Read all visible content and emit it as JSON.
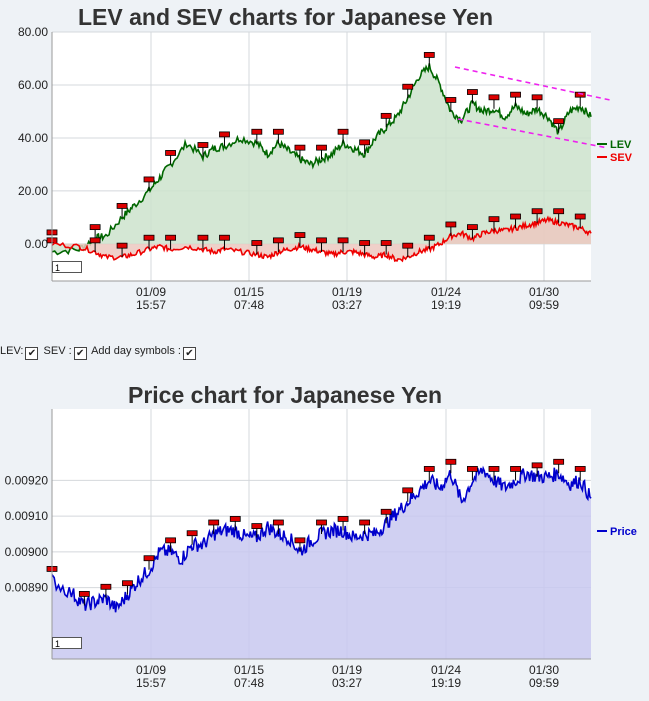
{
  "chart1": {
    "title": "LEV and SEV charts for Japanese Yen",
    "zoom_value": "1"
  },
  "chart2": {
    "title": "Price chart for Japanese Yen",
    "zoom_value": "1"
  },
  "controls": {
    "lev_label": "LEV:",
    "sev_label": "SEV :",
    "day_symbols_label": "Add day symbols :",
    "check_mark": "✔"
  },
  "chart_data": [
    {
      "type": "area",
      "title": "LEV and SEV charts for Japanese Yen",
      "ylim": [
        -14,
        80
      ],
      "y_ticks": [
        "80.00",
        "60.00",
        "40.00",
        "20.00",
        "0.00"
      ],
      "x_tick_labels": [
        [
          "01/09",
          "15:57"
        ],
        [
          "01/15",
          "07:48"
        ],
        [
          "01/19",
          "03:27"
        ],
        [
          "01/24",
          "19:19"
        ],
        [
          "01/30",
          "09:59"
        ]
      ],
      "grid": true,
      "legend_position": "right",
      "trend_lines": {
        "color": "#ee22ee",
        "style": "dashed"
      },
      "series": [
        {
          "name": "LEV",
          "color": "#006600",
          "fill": "#cce3cc",
          "x": [
            0,
            0.05,
            0.08,
            0.1,
            0.13,
            0.15,
            0.18,
            0.2,
            0.22,
            0.25,
            0.28,
            0.3,
            0.32,
            0.35,
            0.38,
            0.4,
            0.42,
            0.44,
            0.46,
            0.48,
            0.5,
            0.52,
            0.54,
            0.56,
            0.58,
            0.6,
            0.62,
            0.64,
            0.66,
            0.68,
            0.7,
            0.72,
            0.74,
            0.76,
            0.78,
            0.8,
            0.82,
            0.84,
            0.86,
            0.88,
            0.9,
            0.92,
            0.94,
            0.96,
            0.98,
            1
          ],
          "values": [
            -3,
            -2,
            2,
            3,
            10,
            14,
            20,
            25,
            30,
            38,
            33,
            36,
            37,
            40,
            38,
            34,
            38,
            35,
            32,
            30,
            32,
            34,
            38,
            36,
            34,
            40,
            44,
            48,
            55,
            63,
            67,
            60,
            50,
            47,
            53,
            50,
            51,
            48,
            52,
            49,
            51,
            48,
            42,
            50,
            52,
            48
          ]
        },
        {
          "name": "SEV",
          "color": "#ee0000",
          "fill": "#ecc8c0",
          "x": [
            0,
            0.05,
            0.08,
            0.1,
            0.13,
            0.15,
            0.18,
            0.2,
            0.22,
            0.25,
            0.28,
            0.3,
            0.32,
            0.35,
            0.38,
            0.4,
            0.42,
            0.44,
            0.46,
            0.48,
            0.5,
            0.52,
            0.54,
            0.56,
            0.58,
            0.6,
            0.62,
            0.64,
            0.66,
            0.68,
            0.7,
            0.72,
            0.74,
            0.76,
            0.78,
            0.8,
            0.82,
            0.84,
            0.86,
            0.88,
            0.9,
            0.92,
            0.94,
            0.96,
            0.98,
            1
          ],
          "values": [
            0,
            -1,
            -3,
            -5,
            -5,
            -4,
            -2,
            -1,
            -2,
            -1,
            -2,
            -3,
            -2,
            -3,
            -4,
            -5,
            -3,
            -2,
            -1,
            -2,
            -3,
            -4,
            -3,
            -3,
            -4,
            -5,
            -4,
            -6,
            -5,
            -3,
            -2,
            0,
            3,
            4,
            2,
            4,
            5,
            5,
            6,
            7,
            8,
            9,
            8,
            7,
            6,
            4
          ]
        }
      ]
    },
    {
      "type": "area",
      "title": "Price chart for Japanese Yen",
      "ylim": [
        0.0087,
        0.0094
      ],
      "y_ticks": [
        "0.00920",
        "0.00910",
        "0.00900",
        "0.00890"
      ],
      "x_tick_labels": [
        [
          "01/09",
          "15:57"
        ],
        [
          "01/15",
          "07:48"
        ],
        [
          "01/19",
          "03:27"
        ],
        [
          "01/24",
          "19:19"
        ],
        [
          "01/30",
          "09:59"
        ]
      ],
      "grid": true,
      "legend_position": "right",
      "series": [
        {
          "name": "Price",
          "color": "#0000cc",
          "fill": "#c8c8f0",
          "x": [
            0,
            0.04,
            0.06,
            0.08,
            0.1,
            0.12,
            0.14,
            0.16,
            0.18,
            0.2,
            0.22,
            0.24,
            0.26,
            0.28,
            0.3,
            0.32,
            0.34,
            0.36,
            0.38,
            0.4,
            0.42,
            0.44,
            0.46,
            0.48,
            0.5,
            0.52,
            0.54,
            0.56,
            0.58,
            0.6,
            0.62,
            0.64,
            0.66,
            0.68,
            0.7,
            0.72,
            0.74,
            0.76,
            0.78,
            0.8,
            0.82,
            0.84,
            0.86,
            0.88,
            0.9,
            0.92,
            0.94,
            0.96,
            0.98,
            1
          ],
          "values": [
            0.00892,
            0.00888,
            0.00885,
            0.00886,
            0.00887,
            0.00884,
            0.00888,
            0.00892,
            0.00895,
            0.009,
            0.009,
            0.00898,
            0.00902,
            0.00902,
            0.00905,
            0.00906,
            0.00906,
            0.00904,
            0.00904,
            0.00907,
            0.00905,
            0.00904,
            0.009,
            0.00903,
            0.00905,
            0.00906,
            0.00906,
            0.00904,
            0.00905,
            0.00905,
            0.00908,
            0.00911,
            0.00914,
            0.00917,
            0.0092,
            0.00918,
            0.00922,
            0.00914,
            0.0092,
            0.00923,
            0.0092,
            0.00918,
            0.0092,
            0.00922,
            0.00921,
            0.00921,
            0.00922,
            0.00919,
            0.0092,
            0.00915
          ]
        }
      ]
    }
  ]
}
